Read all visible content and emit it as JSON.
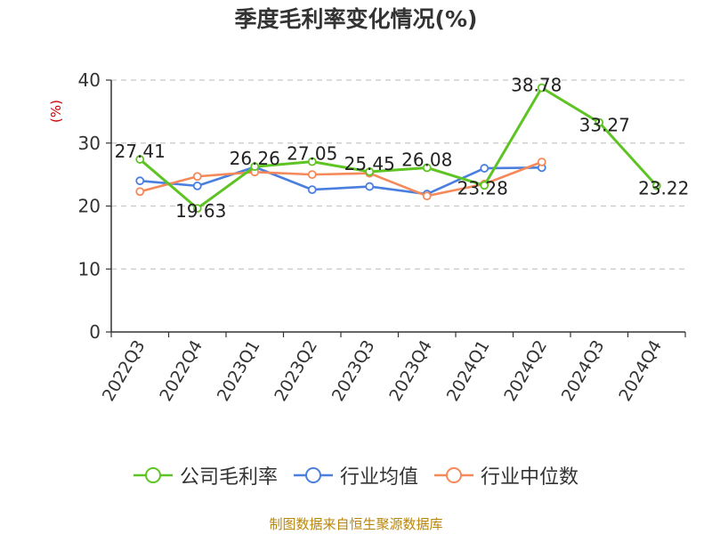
{
  "title": "季度毛利率变化情况(%)",
  "source": "制图数据来自恒生聚源数据库",
  "colors": {
    "company": "#5ec424",
    "industry_avg": "#4a7fe0",
    "industry_median": "#f5895a"
  },
  "chart_data": {
    "type": "line",
    "title": "季度毛利率变化情况(%)",
    "ylabel": "(%)",
    "xlabel": "",
    "ylim": [
      0,
      40
    ],
    "yticks": [
      0,
      10,
      20,
      30,
      40
    ],
    "grid": true,
    "legend_position": "bottom",
    "categories": [
      "2022Q3",
      "2022Q4",
      "2023Q1",
      "2023Q2",
      "2023Q3",
      "2023Q4",
      "2024Q1",
      "2024Q2",
      "2024Q3",
      "2024Q4"
    ],
    "series": [
      {
        "name": "公司毛利率",
        "values": [
          27.41,
          19.63,
          26.26,
          27.05,
          25.45,
          26.08,
          23.28,
          38.78,
          33.27,
          23.22
        ],
        "labels": [
          "27.41",
          "19.63",
          "26.26",
          "27.05",
          "25.45",
          "26.08",
          "23.28",
          "38.78",
          "33.27",
          "23.22"
        ]
      },
      {
        "name": "行业均值",
        "values": [
          24.0,
          23.2,
          26.2,
          22.6,
          23.1,
          21.9,
          26.0,
          26.1,
          null,
          null
        ]
      },
      {
        "name": "行业中位数",
        "values": [
          22.3,
          24.7,
          25.4,
          25.0,
          25.2,
          21.6,
          23.5,
          27.0,
          null,
          null
        ]
      }
    ]
  }
}
